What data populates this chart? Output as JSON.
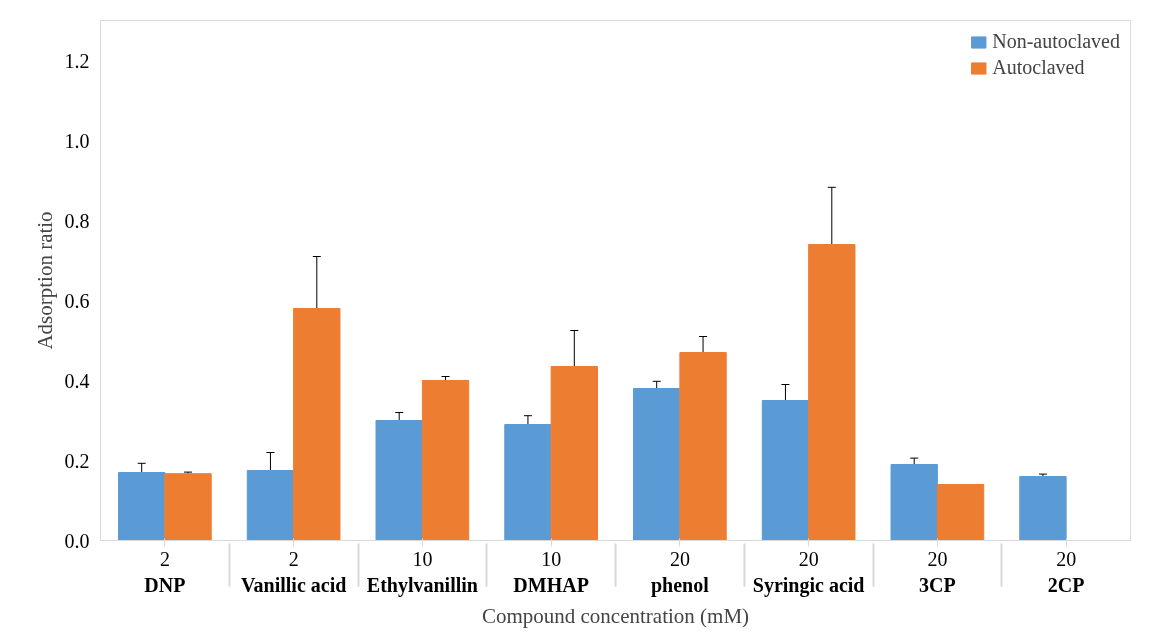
{
  "chart_data": {
    "type": "bar",
    "xlabel": "Compound concentration (mM)",
    "ylabel": "Adsorption ratio",
    "categories": [
      "2\nDNP",
      "2\nVanillic acid",
      "10\nEthylvanillin",
      "10\nDMHAP",
      "20\nphenol",
      "20\nSyringic acid",
      "20\n3CP",
      "20\n2CP"
    ],
    "series": [
      {
        "name": "Non-autoclaved",
        "color": "#5b9bd5",
        "values": [
          0.17,
          0.175,
          0.3,
          0.29,
          0.38,
          0.35,
          0.19,
          0.16
        ],
        "errors": [
          0.023,
          0.045,
          0.02,
          0.022,
          0.018,
          0.04,
          0.016,
          0.006
        ]
      },
      {
        "name": "Autoclaved",
        "color": "#ed7d31",
        "values": [
          0.167,
          0.58,
          0.4,
          0.435,
          0.47,
          0.74,
          0.14,
          null
        ],
        "errors": [
          0.004,
          0.13,
          0.01,
          0.09,
          0.04,
          0.143,
          null,
          null
        ]
      }
    ],
    "ylim": [
      0,
      1.3
    ],
    "yticks": [
      {
        "value": 0,
        "label": "0.0"
      },
      {
        "value": 0.2,
        "label": "0.2"
      },
      {
        "value": 0.4,
        "label": "0.4"
      },
      {
        "value": 0.6,
        "label": "0.6"
      },
      {
        "value": 0.8,
        "label": "0.8"
      },
      {
        "value": 1.0,
        "label": "1.0"
      },
      {
        "value": 1.2,
        "label": "1.2"
      }
    ],
    "grid": false,
    "legend": "top right"
  }
}
